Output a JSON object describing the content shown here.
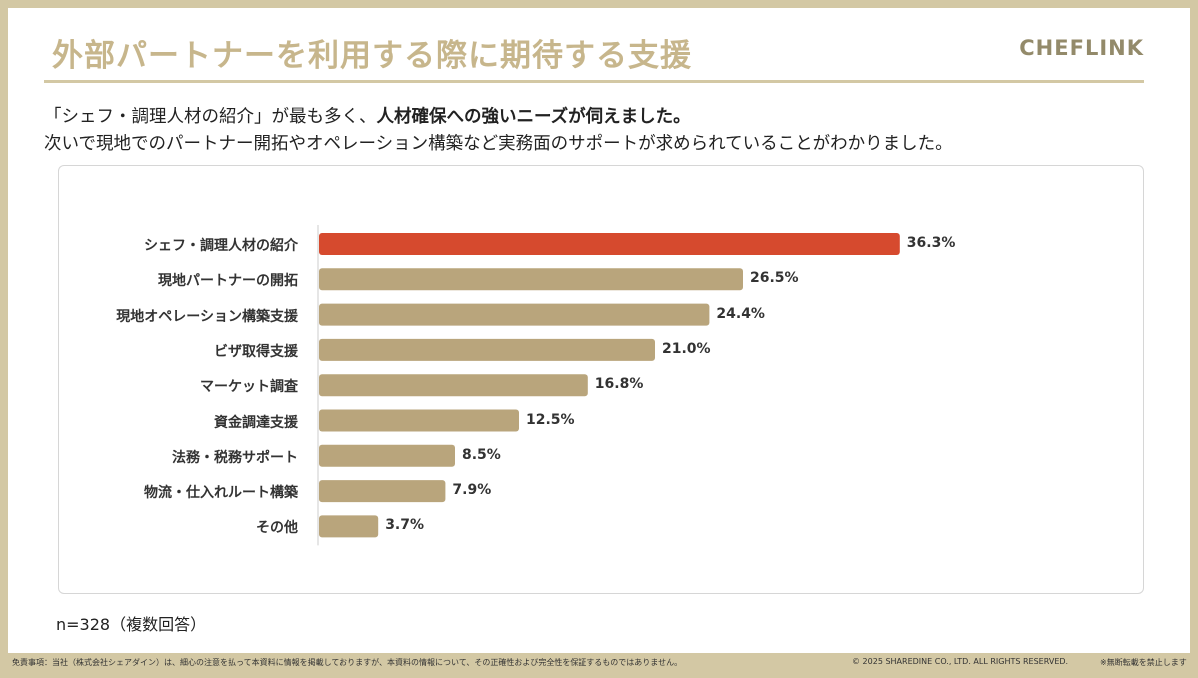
{
  "header": {
    "title": "外部パートナーを利用する際に期待する支援",
    "logo": "CHEFLINK"
  },
  "description": {
    "line1_pre": "「シェフ・調理人材の紹介」が最も多く、",
    "line1_bold": "人材確保への強いニーズが伺えました。",
    "line2": "次いで現地でのパートナー開拓やオペレーション構築など実務面のサポートが求められていることがわかりました。"
  },
  "chart_data": {
    "type": "bar",
    "orientation": "horizontal",
    "categories": [
      "シェフ・調理人材の紹介",
      "現地パートナーの開拓",
      "現地オペレーション構築支援",
      "ビザ取得支援",
      "マーケット調査",
      "資金調達支援",
      "法務・税務サポート",
      "物流・仕入れルート構築",
      "その他"
    ],
    "values": [
      36.3,
      26.5,
      24.4,
      21.0,
      16.8,
      12.5,
      8.5,
      7.9,
      3.7
    ],
    "value_labels": [
      "36.3%",
      "26.5%",
      "24.4%",
      "21.0%",
      "16.8%",
      "12.5%",
      "8.5%",
      "7.9%",
      "3.7%"
    ],
    "unit": "%",
    "colors": {
      "highlight": "#d64a2e",
      "default": "#b9a57c"
    },
    "highlight_index": 0,
    "grid": false
  },
  "note": "n=328（複数回答）",
  "footer": {
    "disclaimer": "免責事項：当社（株式会社シェアダイン）は、細心の注意を払って本資料に情報を掲載しておりますが、本資料の情報について、その正確性および完全性を保証するものではありません。",
    "copyright": "© 2025 SHAREDINE CO., LTD. ALL RIGHTS RESERVED.",
    "no_reprint": "※無断転載を禁止します"
  }
}
